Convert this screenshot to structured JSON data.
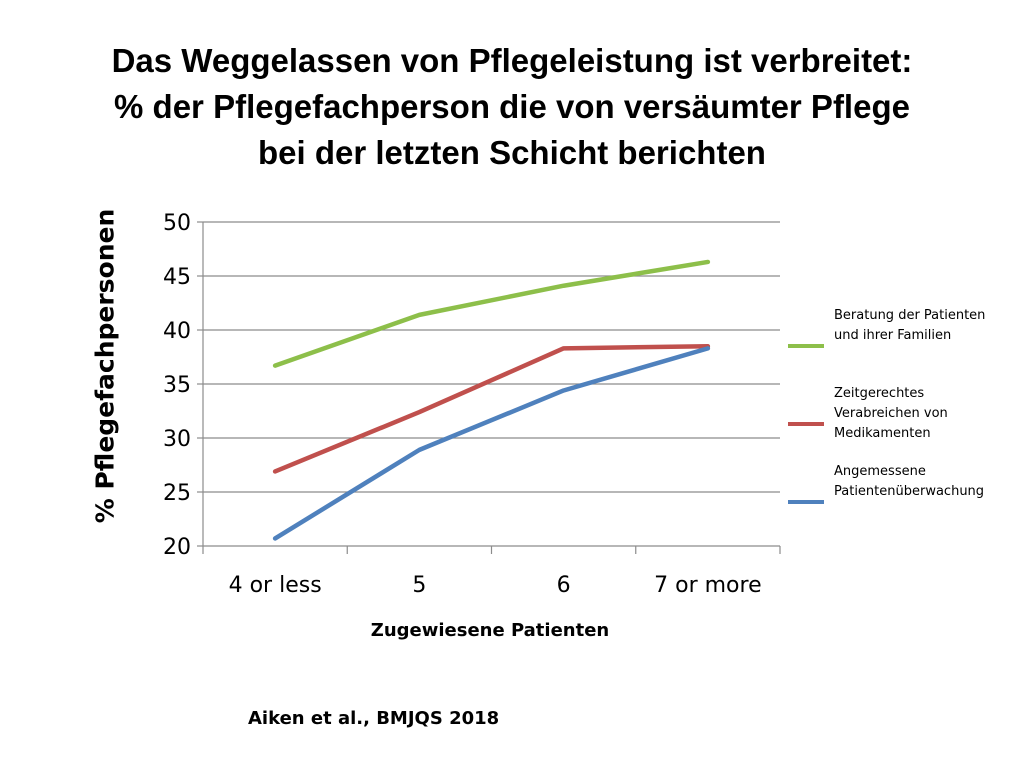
{
  "slide": {
    "title_lines": [
      "Das Weggelassen von Pflegeleistung ist verbreitet:",
      "% der Pflegefachperson die von versäumter Pflege",
      "bei der letzten Schicht berichten"
    ],
    "source": "Aiken et al., BMJQS 2018"
  },
  "chart_data": {
    "type": "line",
    "xlabel": "Zugewiesene Patienten",
    "ylabel": "% Pflegefachpersonen",
    "categories": [
      "4 or less",
      "5",
      "6",
      "7 or more"
    ],
    "ylim": [
      20,
      50
    ],
    "yticks": [
      20,
      25,
      30,
      35,
      40,
      45,
      50
    ],
    "grid": true,
    "legend_position": "right",
    "series": [
      {
        "name": "Beratung der Patienten und ihrer Familien",
        "color": "#8dbf4a",
        "values": [
          36.7,
          41.4,
          44.1,
          46.3
        ]
      },
      {
        "name": "Zeitgerechtes Verabreichen von Medikamenten",
        "color": "#c0504d",
        "values": [
          26.9,
          32.4,
          38.3,
          38.5
        ]
      },
      {
        "name": "Angemessene Patientenüberwachung",
        "color": "#4f81bd",
        "values": [
          20.7,
          28.9,
          34.4,
          38.3
        ]
      }
    ]
  }
}
